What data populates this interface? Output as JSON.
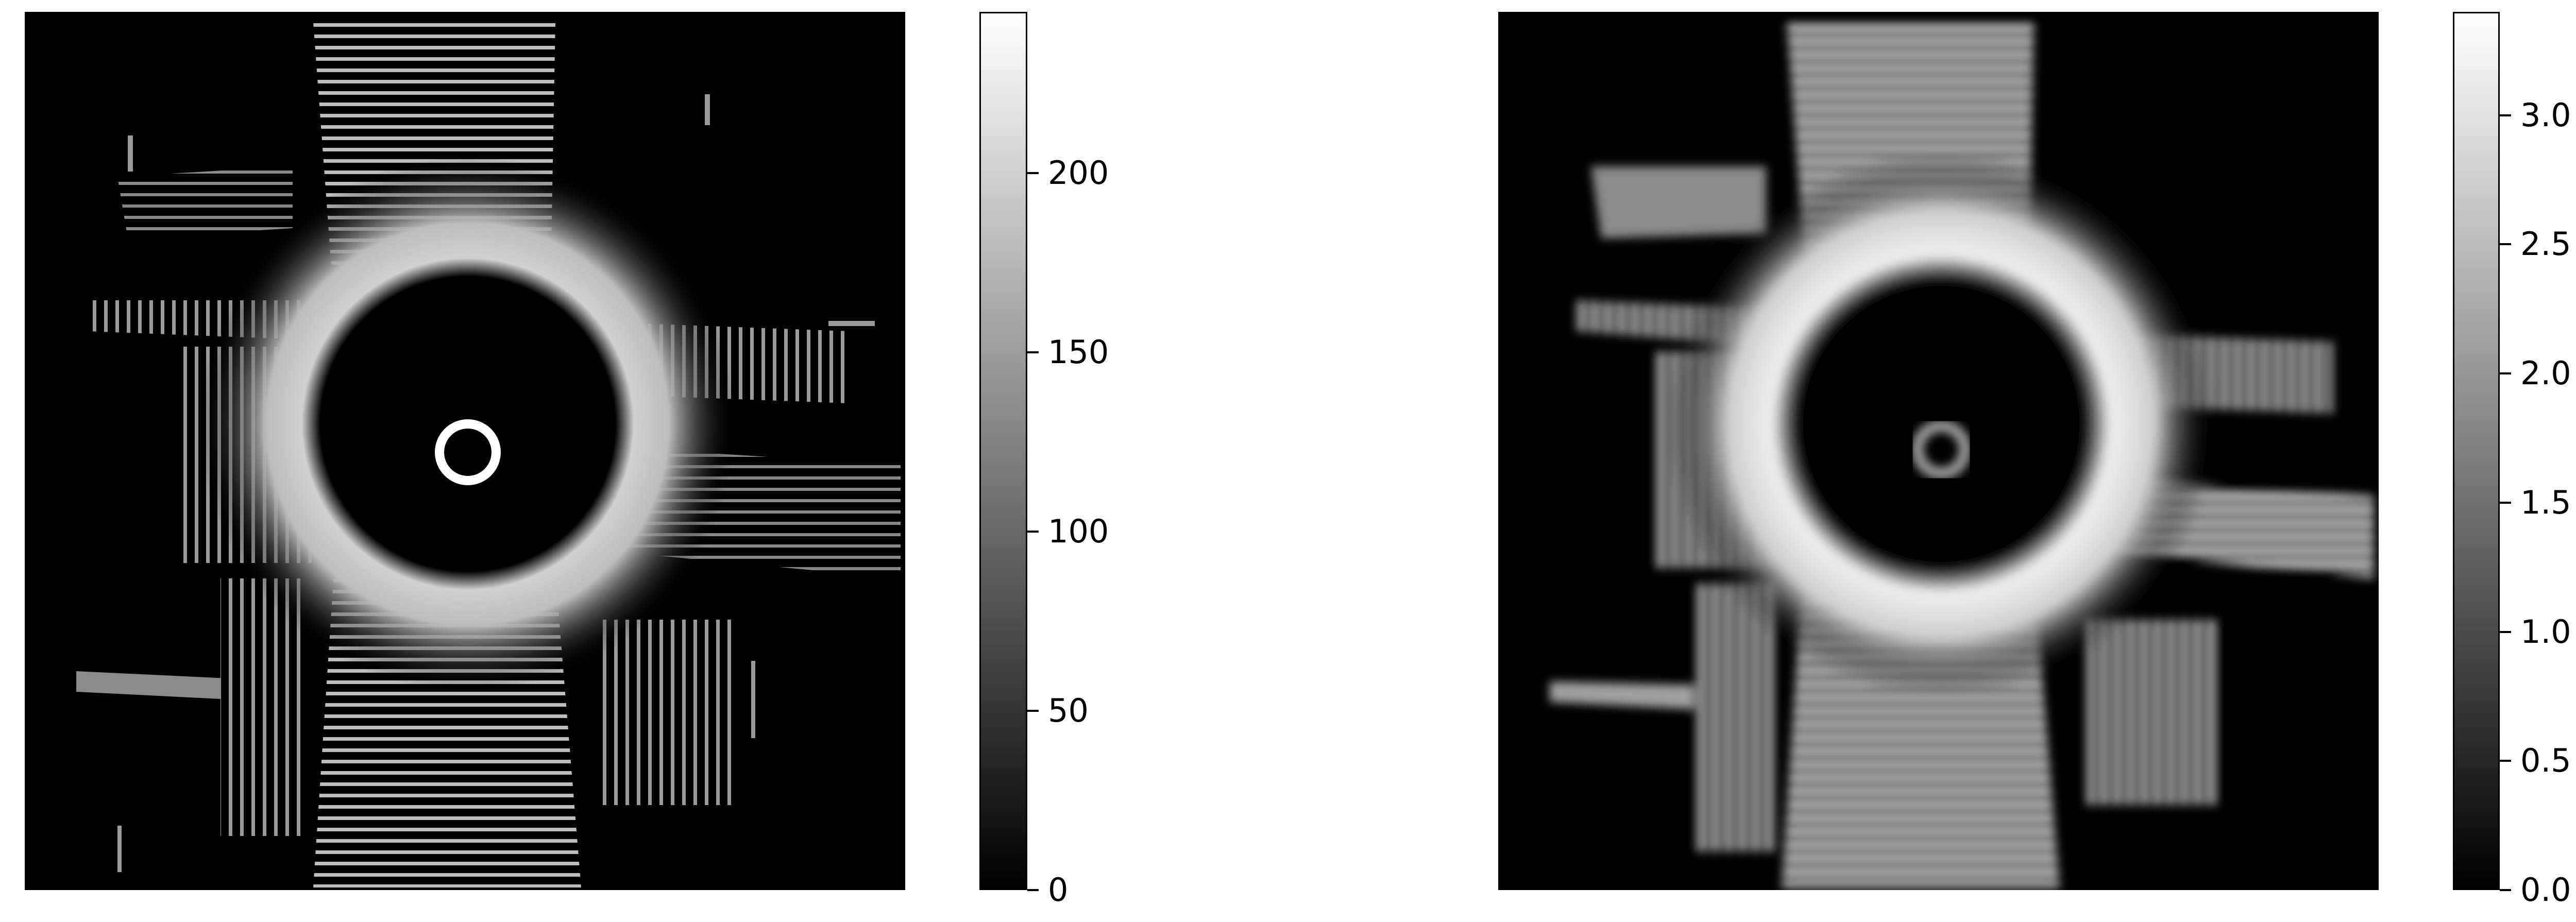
{
  "figure": {
    "left_panel": {
      "content": "lidar-bev-raw",
      "colormap": "gray",
      "colorbar": {
        "range": [
          0,
          245
        ],
        "ticks": [
          "0",
          "50",
          "100",
          "150",
          "200"
        ],
        "tick_values": [
          0,
          50,
          100,
          150,
          200
        ]
      }
    },
    "right_panel": {
      "content": "lidar-bev-smoothed",
      "colormap": "gray",
      "colorbar": {
        "range": [
          0,
          3.4
        ],
        "ticks": [
          "0.0",
          "0.5",
          "1.0",
          "1.5",
          "2.0",
          "2.5",
          "3.0"
        ],
        "tick_values": [
          0.0,
          0.5,
          1.0,
          1.5,
          2.0,
          2.5,
          3.0
        ]
      }
    },
    "colors": {
      "background": "#ffffff",
      "image_background": "#000000",
      "frame": "#000000"
    }
  }
}
